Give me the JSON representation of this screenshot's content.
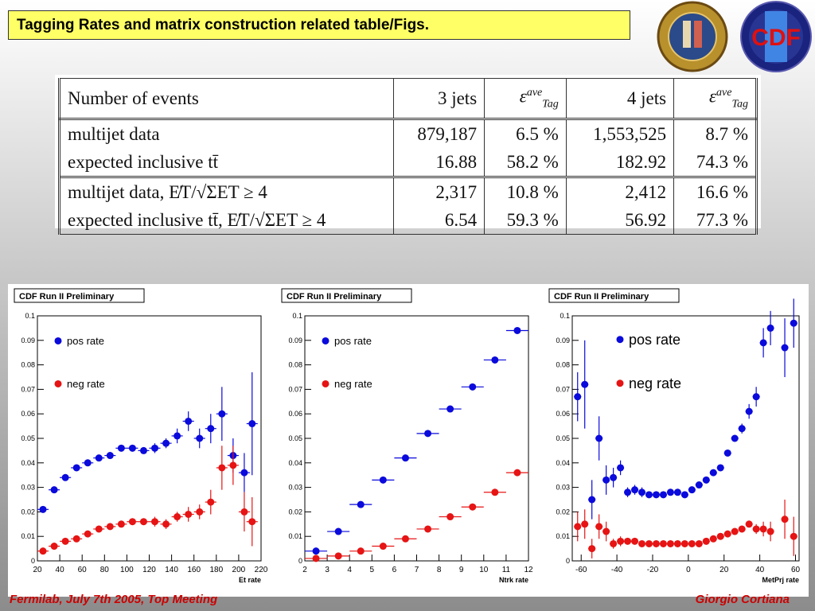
{
  "header": {
    "title": "Tagging Rates and matrix construction related table/Figs."
  },
  "logos": {
    "left_seal": "university-seal-icon",
    "right_logo": "CDF"
  },
  "table": {
    "header": [
      "Number of events",
      "3 jets",
      "ε",
      "4 jets",
      "ε"
    ],
    "eps_sup": "ave",
    "eps_sub": "Tag",
    "rows": [
      [
        "multijet data",
        "879,187",
        "6.5 %",
        "1,553,525",
        "8.7 %"
      ],
      [
        "expected inclusive tt̄",
        "16.88",
        "58.2 %",
        "182.92",
        "74.3 %"
      ],
      [
        "multijet data, E̸T/√ΣET ≥ 4",
        "2,317",
        "10.8 %",
        "2,412",
        "16.6 %"
      ],
      [
        "expected inclusive tt̄, E̸T/√ΣET ≥ 4",
        "6.54",
        "59.3 %",
        "56.92",
        "77.3 %"
      ]
    ]
  },
  "footer": {
    "left": "Fermilab, July 7th 2005, Top Meeting",
    "right": "Giorgio Cortiana"
  },
  "colors": {
    "pos": "#0a0adc",
    "neg": "#e61414"
  },
  "chart_data": [
    {
      "type": "scatter",
      "banner": "CDF Run II Preliminary",
      "xlabel": "Et rate",
      "ylabel": "",
      "xlim": [
        20,
        220
      ],
      "ylim": [
        0,
        0.1
      ],
      "xticks": [
        20,
        40,
        60,
        80,
        100,
        120,
        140,
        160,
        180,
        200,
        220
      ],
      "yticks": [
        0,
        0.01,
        0.02,
        0.03,
        0.04,
        0.05,
        0.06,
        0.07,
        0.08,
        0.09,
        0.1
      ],
      "legend": [
        "pos rate",
        "neg rate"
      ],
      "series": [
        {
          "name": "pos rate",
          "color": "#0a0adc",
          "x": [
            25,
            35,
            45,
            55,
            65,
            75,
            85,
            95,
            105,
            115,
            125,
            135,
            145,
            155,
            165,
            175,
            185,
            195,
            205,
            212
          ],
          "y": [
            0.021,
            0.029,
            0.034,
            0.038,
            0.04,
            0.042,
            0.043,
            0.046,
            0.046,
            0.045,
            0.046,
            0.048,
            0.051,
            0.057,
            0.05,
            0.054,
            0.06,
            0.043,
            0.036,
            0.056
          ],
          "err": [
            0.001,
            0.001,
            0.001,
            0.001,
            0.001,
            0.001,
            0.001,
            0.001,
            0.001,
            0.001,
            0.002,
            0.002,
            0.003,
            0.004,
            0.004,
            0.006,
            0.011,
            0.007,
            0.008,
            0.021
          ]
        },
        {
          "name": "neg rate",
          "color": "#e61414",
          "x": [
            25,
            35,
            45,
            55,
            65,
            75,
            85,
            95,
            105,
            115,
            125,
            135,
            145,
            155,
            165,
            175,
            185,
            195,
            205,
            212
          ],
          "y": [
            0.004,
            0.006,
            0.008,
            0.009,
            0.011,
            0.013,
            0.014,
            0.015,
            0.016,
            0.016,
            0.016,
            0.015,
            0.018,
            0.019,
            0.02,
            0.024,
            0.038,
            0.039,
            0.02,
            0.016
          ],
          "err": [
            0.001,
            0.001,
            0.001,
            0.001,
            0.001,
            0.001,
            0.001,
            0.001,
            0.001,
            0.001,
            0.002,
            0.002,
            0.002,
            0.003,
            0.003,
            0.005,
            0.009,
            0.008,
            0.008,
            0.01
          ]
        }
      ]
    },
    {
      "type": "scatter",
      "banner": "CDF Run II Preliminary",
      "xlabel": "Ntrk rate",
      "ylabel": "",
      "xlim": [
        2,
        12
      ],
      "ylim": [
        0,
        0.1
      ],
      "xticks": [
        2,
        3,
        4,
        5,
        6,
        7,
        8,
        9,
        10,
        11,
        12
      ],
      "yticks": [
        0,
        0.01,
        0.02,
        0.03,
        0.04,
        0.05,
        0.06,
        0.07,
        0.08,
        0.09,
        0.1
      ],
      "legend": [
        "pos rate",
        "neg rate"
      ],
      "series": [
        {
          "name": "pos rate",
          "color": "#0a0adc",
          "x": [
            2.5,
            3.5,
            4.5,
            5.5,
            6.5,
            7.5,
            8.5,
            9.5,
            10.5,
            11.5
          ],
          "y": [
            0.004,
            0.012,
            0.023,
            0.033,
            0.042,
            0.052,
            0.062,
            0.071,
            0.082,
            0.094
          ],
          "err": [
            0.001,
            0.001,
            0.001,
            0.001,
            0.001,
            0.001,
            0.001,
            0.001,
            0.001,
            0.001
          ]
        },
        {
          "name": "neg rate",
          "color": "#e61414",
          "x": [
            2.5,
            3.5,
            4.5,
            5.5,
            6.5,
            7.5,
            8.5,
            9.5,
            10.5,
            11.5
          ],
          "y": [
            0.001,
            0.002,
            0.004,
            0.006,
            0.009,
            0.013,
            0.018,
            0.022,
            0.028,
            0.036
          ],
          "err": [
            0.001,
            0.001,
            0.001,
            0.001,
            0.001,
            0.001,
            0.001,
            0.001,
            0.001,
            0.001
          ]
        }
      ]
    },
    {
      "type": "scatter",
      "banner": "CDF Run II Preliminary",
      "xlabel": "MetPrj rate",
      "ylabel": "",
      "xlim": [
        -65,
        62
      ],
      "ylim": [
        0,
        0.1
      ],
      "xticks": [
        -60,
        -40,
        -20,
        0,
        20,
        40,
        60
      ],
      "yticks": [
        0,
        0.01,
        0.02,
        0.03,
        0.04,
        0.05,
        0.06,
        0.07,
        0.08,
        0.09,
        0.1
      ],
      "legend": [
        "pos rate",
        "neg rate"
      ],
      "series": [
        {
          "name": "pos rate",
          "color": "#0a0adc",
          "x": [
            -62,
            -58,
            -54,
            -50,
            -46,
            -42,
            -38,
            -34,
            -30,
            -26,
            -22,
            -18,
            -14,
            -10,
            -6,
            -2,
            2,
            6,
            10,
            14,
            18,
            22,
            26,
            30,
            34,
            38,
            42,
            46,
            54,
            59
          ],
          "y": [
            0.067,
            0.072,
            0.025,
            0.05,
            0.033,
            0.034,
            0.038,
            0.028,
            0.029,
            0.028,
            0.027,
            0.027,
            0.027,
            0.028,
            0.028,
            0.027,
            0.029,
            0.031,
            0.033,
            0.036,
            0.038,
            0.044,
            0.05,
            0.054,
            0.061,
            0.067,
            0.089,
            0.095,
            0.087,
            0.097
          ],
          "err": [
            0.01,
            0.018,
            0.008,
            0.009,
            0.006,
            0.004,
            0.003,
            0.002,
            0.002,
            0.002,
            0.001,
            0.001,
            0.001,
            0.001,
            0.001,
            0.001,
            0.001,
            0.001,
            0.001,
            0.001,
            0.001,
            0.001,
            0.001,
            0.002,
            0.003,
            0.004,
            0.006,
            0.007,
            0.012,
            0.01
          ]
        },
        {
          "name": "neg rate",
          "color": "#e61414",
          "x": [
            -62,
            -58,
            -54,
            -50,
            -46,
            -42,
            -38,
            -34,
            -30,
            -26,
            -22,
            -18,
            -14,
            -10,
            -6,
            -2,
            2,
            6,
            10,
            14,
            18,
            22,
            26,
            30,
            34,
            38,
            42,
            46,
            54,
            59
          ],
          "y": [
            0.014,
            0.015,
            0.005,
            0.014,
            0.012,
            0.007,
            0.008,
            0.008,
            0.008,
            0.007,
            0.007,
            0.007,
            0.007,
            0.007,
            0.007,
            0.007,
            0.007,
            0.007,
            0.008,
            0.009,
            0.01,
            0.011,
            0.012,
            0.013,
            0.015,
            0.013,
            0.013,
            0.012,
            0.017,
            0.01
          ],
          "err": [
            0.006,
            0.006,
            0.004,
            0.005,
            0.004,
            0.002,
            0.002,
            0.001,
            0.001,
            0.001,
            0.001,
            0.001,
            0.001,
            0.001,
            0.001,
            0.001,
            0.001,
            0.001,
            0.001,
            0.001,
            0.001,
            0.001,
            0.001,
            0.001,
            0.001,
            0.002,
            0.003,
            0.004,
            0.008,
            0.008
          ]
        }
      ]
    }
  ]
}
